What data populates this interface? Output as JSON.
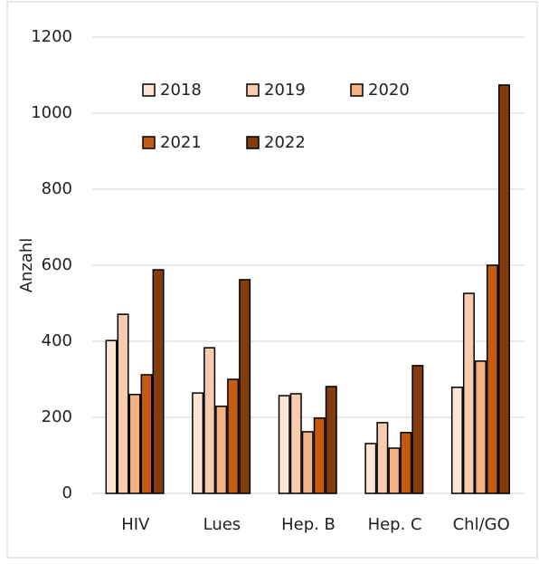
{
  "chart_data": {
    "type": "bar",
    "ylabel": "Anzahl",
    "categories": [
      "HIV",
      "Lues",
      "Hep. B",
      "Hep. C",
      "Chl/GO"
    ],
    "series": [
      {
        "name": "2018",
        "color": "#fbe5d6",
        "values": [
          402,
          264,
          257,
          131,
          279
        ]
      },
      {
        "name": "2019",
        "color": "#f8cbad",
        "values": [
          471,
          383,
          262,
          186,
          526
        ]
      },
      {
        "name": "2020",
        "color": "#f4b183",
        "values": [
          260,
          229,
          162,
          119,
          348
        ]
      },
      {
        "name": "2021",
        "color": "#c55a11",
        "values": [
          312,
          300,
          198,
          160,
          600
        ]
      },
      {
        "name": "2022",
        "color": "#843c0c",
        "values": [
          588,
          562,
          281,
          336,
          1074
        ]
      }
    ],
    "ylim": [
      0,
      1200
    ],
    "yticks": [
      0,
      200,
      400,
      600,
      800,
      1000,
      1200
    ],
    "grid": true
  }
}
